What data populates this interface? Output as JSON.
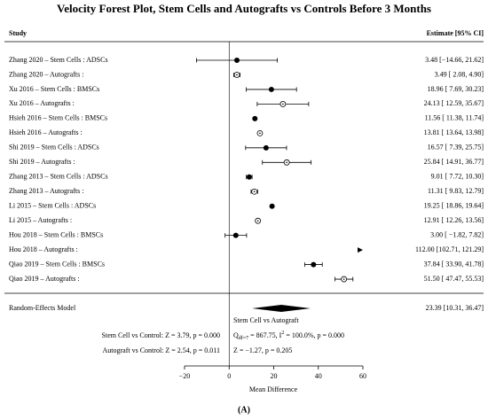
{
  "chart_data": {
    "type": "forest",
    "title": "Velocity Forest Plot, Stem Cells and Autografts vs Controls Before 3 Months",
    "study_header": "Study",
    "estimate_header": "Estimate [95% CI]",
    "categories": [
      "Zhang 2020 – Stem Cells : ADSCs",
      "Zhang 2020 – Autografts :",
      "Xu 2016 – Stem Cells : BMSCs",
      "Xu 2016 – Autografts :",
      "Hsieh 2016 – Stem Cells : BMSCs",
      "Hsieh 2016 – Autografts :",
      "Shi 2019 – Stem Cells : ADSCs",
      "Shi 2019 – Autografts :",
      "Zhang 2013 – Stem Cells : ADSCs",
      "Zhang 2013 – Autografts :",
      "Li 2015 – Stem Cells : ADSCs",
      "Li 2015 – Autografts :",
      "Hou 2018 – Stem Cells : BMSCs",
      "Hou 2018 – Autografts :",
      "Qiao 2019 – Stem Cells : BMSCs",
      "Qiao 2019 – Autografts :"
    ],
    "values": [
      3.48,
      3.49,
      18.96,
      24.13,
      11.56,
      13.81,
      16.57,
      25.84,
      9.01,
      11.31,
      19.25,
      12.91,
      3.0,
      112.0,
      37.84,
      51.5
    ],
    "lower": [
      -14.66,
      2.08,
      7.69,
      12.59,
      11.38,
      13.64,
      7.39,
      14.91,
      7.72,
      9.83,
      18.86,
      12.26,
      -1.82,
      102.71,
      33.9,
      47.47
    ],
    "upper": [
      21.62,
      4.9,
      30.23,
      35.67,
      11.74,
      13.98,
      25.75,
      36.77,
      10.3,
      12.79,
      19.64,
      13.56,
      7.82,
      121.29,
      41.78,
      55.53
    ],
    "value_labels": [
      "3.48 [−14.66, 21.62]",
      "3.49 [ 2.08, 4.90]",
      "18.96 [ 7.69, 30.23]",
      "24.13 [ 12.59, 35.67]",
      "11.56 [ 11.38, 11.74]",
      "13.81 [ 13.64, 13.98]",
      "16.57 [ 7.39, 25.75]",
      "25.84 [ 14.91, 36.77]",
      "9.01 [ 7.72, 10.30]",
      "11.31 [ 9.83, 12.79]",
      "19.25 [ 18.86, 19.64]",
      "12.91 [ 12.26, 13.56]",
      "3.00 [ −1.82, 7.82]",
      "112.00 [102.71, 121.29]",
      "37.84 [ 33.90, 41.78]",
      "51.50 [ 47.47, 55.53]"
    ],
    "markers": [
      "filled",
      "open",
      "filled",
      "open",
      "filled",
      "open",
      "filled",
      "open",
      "filled",
      "open",
      "filled",
      "open",
      "filled",
      "open",
      "filled",
      "open"
    ],
    "summary": {
      "label": "Random-Effects Model",
      "value": 23.39,
      "lower": 10.31,
      "upper": 36.47,
      "value_label": "23.39 [10.31, 36.47]"
    },
    "annotations": {
      "comparison_title": "Stem Cell vs Autograft",
      "q_parts": [
        "Q",
        "df=7",
        " = 867.75, I",
        "2",
        " = 100.0%, p = 0.000"
      ],
      "comparison_z": "Z = −1.27, p = 0.205",
      "stem_cell_vs_control": "Stem Cell vs Control: Z = 3.79, p = 0.000",
      "autograft_vs_control": "Autograft vs Control: Z = 2.54, p = 0.011"
    },
    "xlabel": "Mean Difference",
    "caption": "(A)",
    "xlim": [
      -20,
      60
    ],
    "xticks": [
      {
        "value": -20,
        "label": "−20"
      },
      0,
      20,
      40,
      60
    ],
    "color": "#000000"
  }
}
